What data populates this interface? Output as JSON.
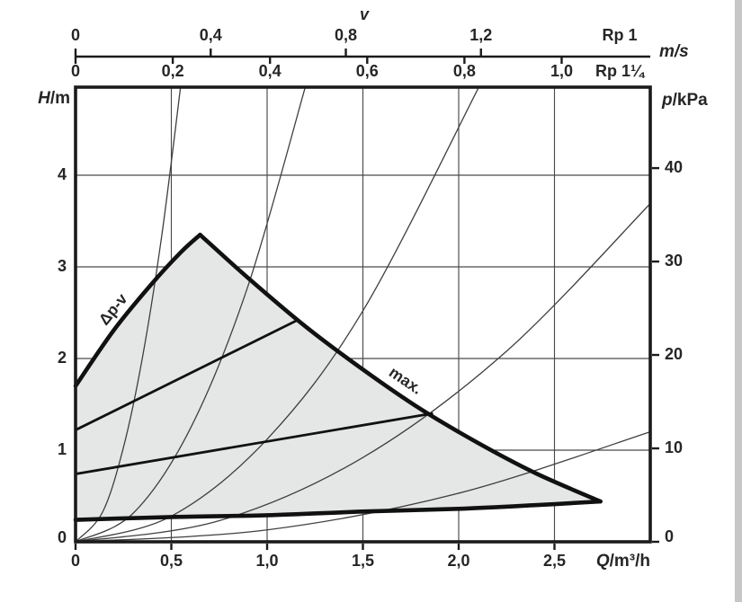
{
  "figure": {
    "type": "pump-performance-chart",
    "background": "#ffffff",
    "right_edge_strip_color": "#c6c8c8",
    "frame_color": "#1b1b1b",
    "grid_color": "#4a4a4a",
    "thin_curve_color": "#3f3f3f",
    "thick_curve_color": "#111111",
    "region_fill": "#e5e6e6",
    "text_color": "#262626"
  },
  "chart_data": {
    "type": "line",
    "title": "",
    "x_axis": {
      "symbol": "Q",
      "unit": "/m³/h",
      "range": [
        0,
        3
      ],
      "ticks": [
        {
          "q": 0,
          "label": "0"
        },
        {
          "q": 0.5,
          "label": "0,5"
        },
        {
          "q": 1.0,
          "label": "1,0"
        },
        {
          "q": 1.5,
          "label": "1,5"
        },
        {
          "q": 2.0,
          "label": "2,0"
        },
        {
          "q": 2.5,
          "label": "2,5"
        }
      ]
    },
    "y_axis_left": {
      "symbol": "H",
      "unit": "/m",
      "range": [
        0,
        4.96
      ],
      "ticks": [
        {
          "h": 0,
          "label": "0"
        },
        {
          "h": 1,
          "label": "1"
        },
        {
          "h": 2,
          "label": "2"
        },
        {
          "h": 3,
          "label": "3"
        },
        {
          "h": 4,
          "label": "4"
        }
      ]
    },
    "y_axis_right": {
      "symbol": "p",
      "unit": "/kPa",
      "kpa_per_m": 9.81,
      "ticks": [
        {
          "p": 0,
          "label": "0"
        },
        {
          "p": 10,
          "label": "10"
        },
        {
          "p": 20,
          "label": "20"
        },
        {
          "p": 30,
          "label": "30"
        },
        {
          "p": 40,
          "label": "40"
        }
      ]
    },
    "velocity_axis": {
      "title": "v",
      "unit": "m/s",
      "scales": [
        {
          "name": "Rp 1",
          "side": "above",
          "q_per_mps": 1.7636,
          "ticks": [
            {
              "v": 0,
              "label": "0"
            },
            {
              "v": 0.4,
              "label": "0,4"
            },
            {
              "v": 0.8,
              "label": "0,8"
            },
            {
              "v": 1.2,
              "label": "1,2"
            }
          ]
        },
        {
          "name": "Rp 1¼",
          "side": "below",
          "q_per_mps": 2.5375,
          "ticks": [
            {
              "v": 0,
              "label": "0"
            },
            {
              "v": 0.2,
              "label": "0,2"
            },
            {
              "v": 0.4,
              "label": "0,4"
            },
            {
              "v": 0.6,
              "label": "0,6"
            },
            {
              "v": 0.8,
              "label": "0,8"
            },
            {
              "v": 1.0,
              "label": "1,0"
            }
          ]
        }
      ]
    },
    "series": [
      {
        "name": "dpv-upper-limit",
        "style": "thick",
        "points": [
          [
            0,
            1.7
          ],
          [
            0.2,
            2.31
          ],
          [
            0.4,
            2.82
          ],
          [
            0.55,
            3.16
          ],
          [
            0.65,
            3.35
          ]
        ]
      },
      {
        "name": "max-curve",
        "style": "thick",
        "points": [
          [
            0.65,
            3.35
          ],
          [
            0.9,
            2.88
          ],
          [
            1.2,
            2.35
          ],
          [
            1.5,
            1.88
          ],
          [
            1.8,
            1.45
          ],
          [
            2.1,
            1.08
          ],
          [
            2.4,
            0.75
          ],
          [
            2.74,
            0.44
          ]
        ]
      },
      {
        "name": "min-curve-bottom",
        "style": "thick",
        "points": [
          [
            0,
            0.24
          ],
          [
            0.5,
            0.27
          ],
          [
            1.0,
            0.29
          ],
          [
            1.5,
            0.33
          ],
          [
            2.0,
            0.36
          ],
          [
            2.4,
            0.4
          ],
          [
            2.74,
            0.44
          ]
        ]
      },
      {
        "name": "setting-curve-upper",
        "style": "medium",
        "points": [
          [
            0,
            1.22
          ],
          [
            1.16,
            2.42
          ]
        ]
      },
      {
        "name": "setting-curve-lower",
        "style": "medium",
        "points": [
          [
            0,
            0.74
          ],
          [
            1.86,
            1.4
          ]
        ]
      },
      {
        "name": "pipe-friction-curve-1",
        "style": "thin",
        "points": [
          [
            0,
            0
          ],
          [
            0.14,
            0.32
          ],
          [
            0.25,
            1.03
          ],
          [
            0.35,
            2.02
          ],
          [
            0.45,
            3.34
          ],
          [
            0.548,
            4.96
          ]
        ]
      },
      {
        "name": "pipe-friction-curve-2",
        "style": "thin",
        "points": [
          [
            0,
            0
          ],
          [
            0.3,
            0.31
          ],
          [
            0.6,
            1.24
          ],
          [
            0.9,
            2.79
          ],
          [
            1.199,
            4.96
          ]
        ]
      },
      {
        "name": "pipe-friction-curve-3",
        "style": "thin",
        "points": [
          [
            0,
            0
          ],
          [
            0.5,
            0.28
          ],
          [
            1.0,
            1.12
          ],
          [
            1.5,
            2.52
          ],
          [
            2.105,
            4.96
          ]
        ]
      },
      {
        "name": "pipe-friction-curve-4",
        "style": "thin",
        "points": [
          [
            0,
            0
          ],
          [
            0.75,
            0.23
          ],
          [
            1.5,
            0.92
          ],
          [
            2.25,
            2.08
          ],
          [
            3.0,
            3.69
          ]
        ]
      },
      {
        "name": "pipe-friction-curve-5",
        "style": "thin",
        "points": [
          [
            0,
            0
          ],
          [
            1.0,
            0.13
          ],
          [
            2.0,
            0.53
          ],
          [
            3.0,
            1.2
          ]
        ]
      }
    ],
    "region": {
      "boundary": [
        "dpv-upper-limit",
        "max-curve",
        "min-curve-bottom"
      ],
      "description": "shaded operating range of the pump"
    },
    "curve_labels": [
      {
        "text": "Δp-v",
        "q": 0.2,
        "h": 2.53,
        "rotate": -51
      },
      {
        "text": "max.",
        "q": 1.72,
        "h": 1.75,
        "rotate": 34
      }
    ],
    "legend_position": "none",
    "grid": true
  }
}
